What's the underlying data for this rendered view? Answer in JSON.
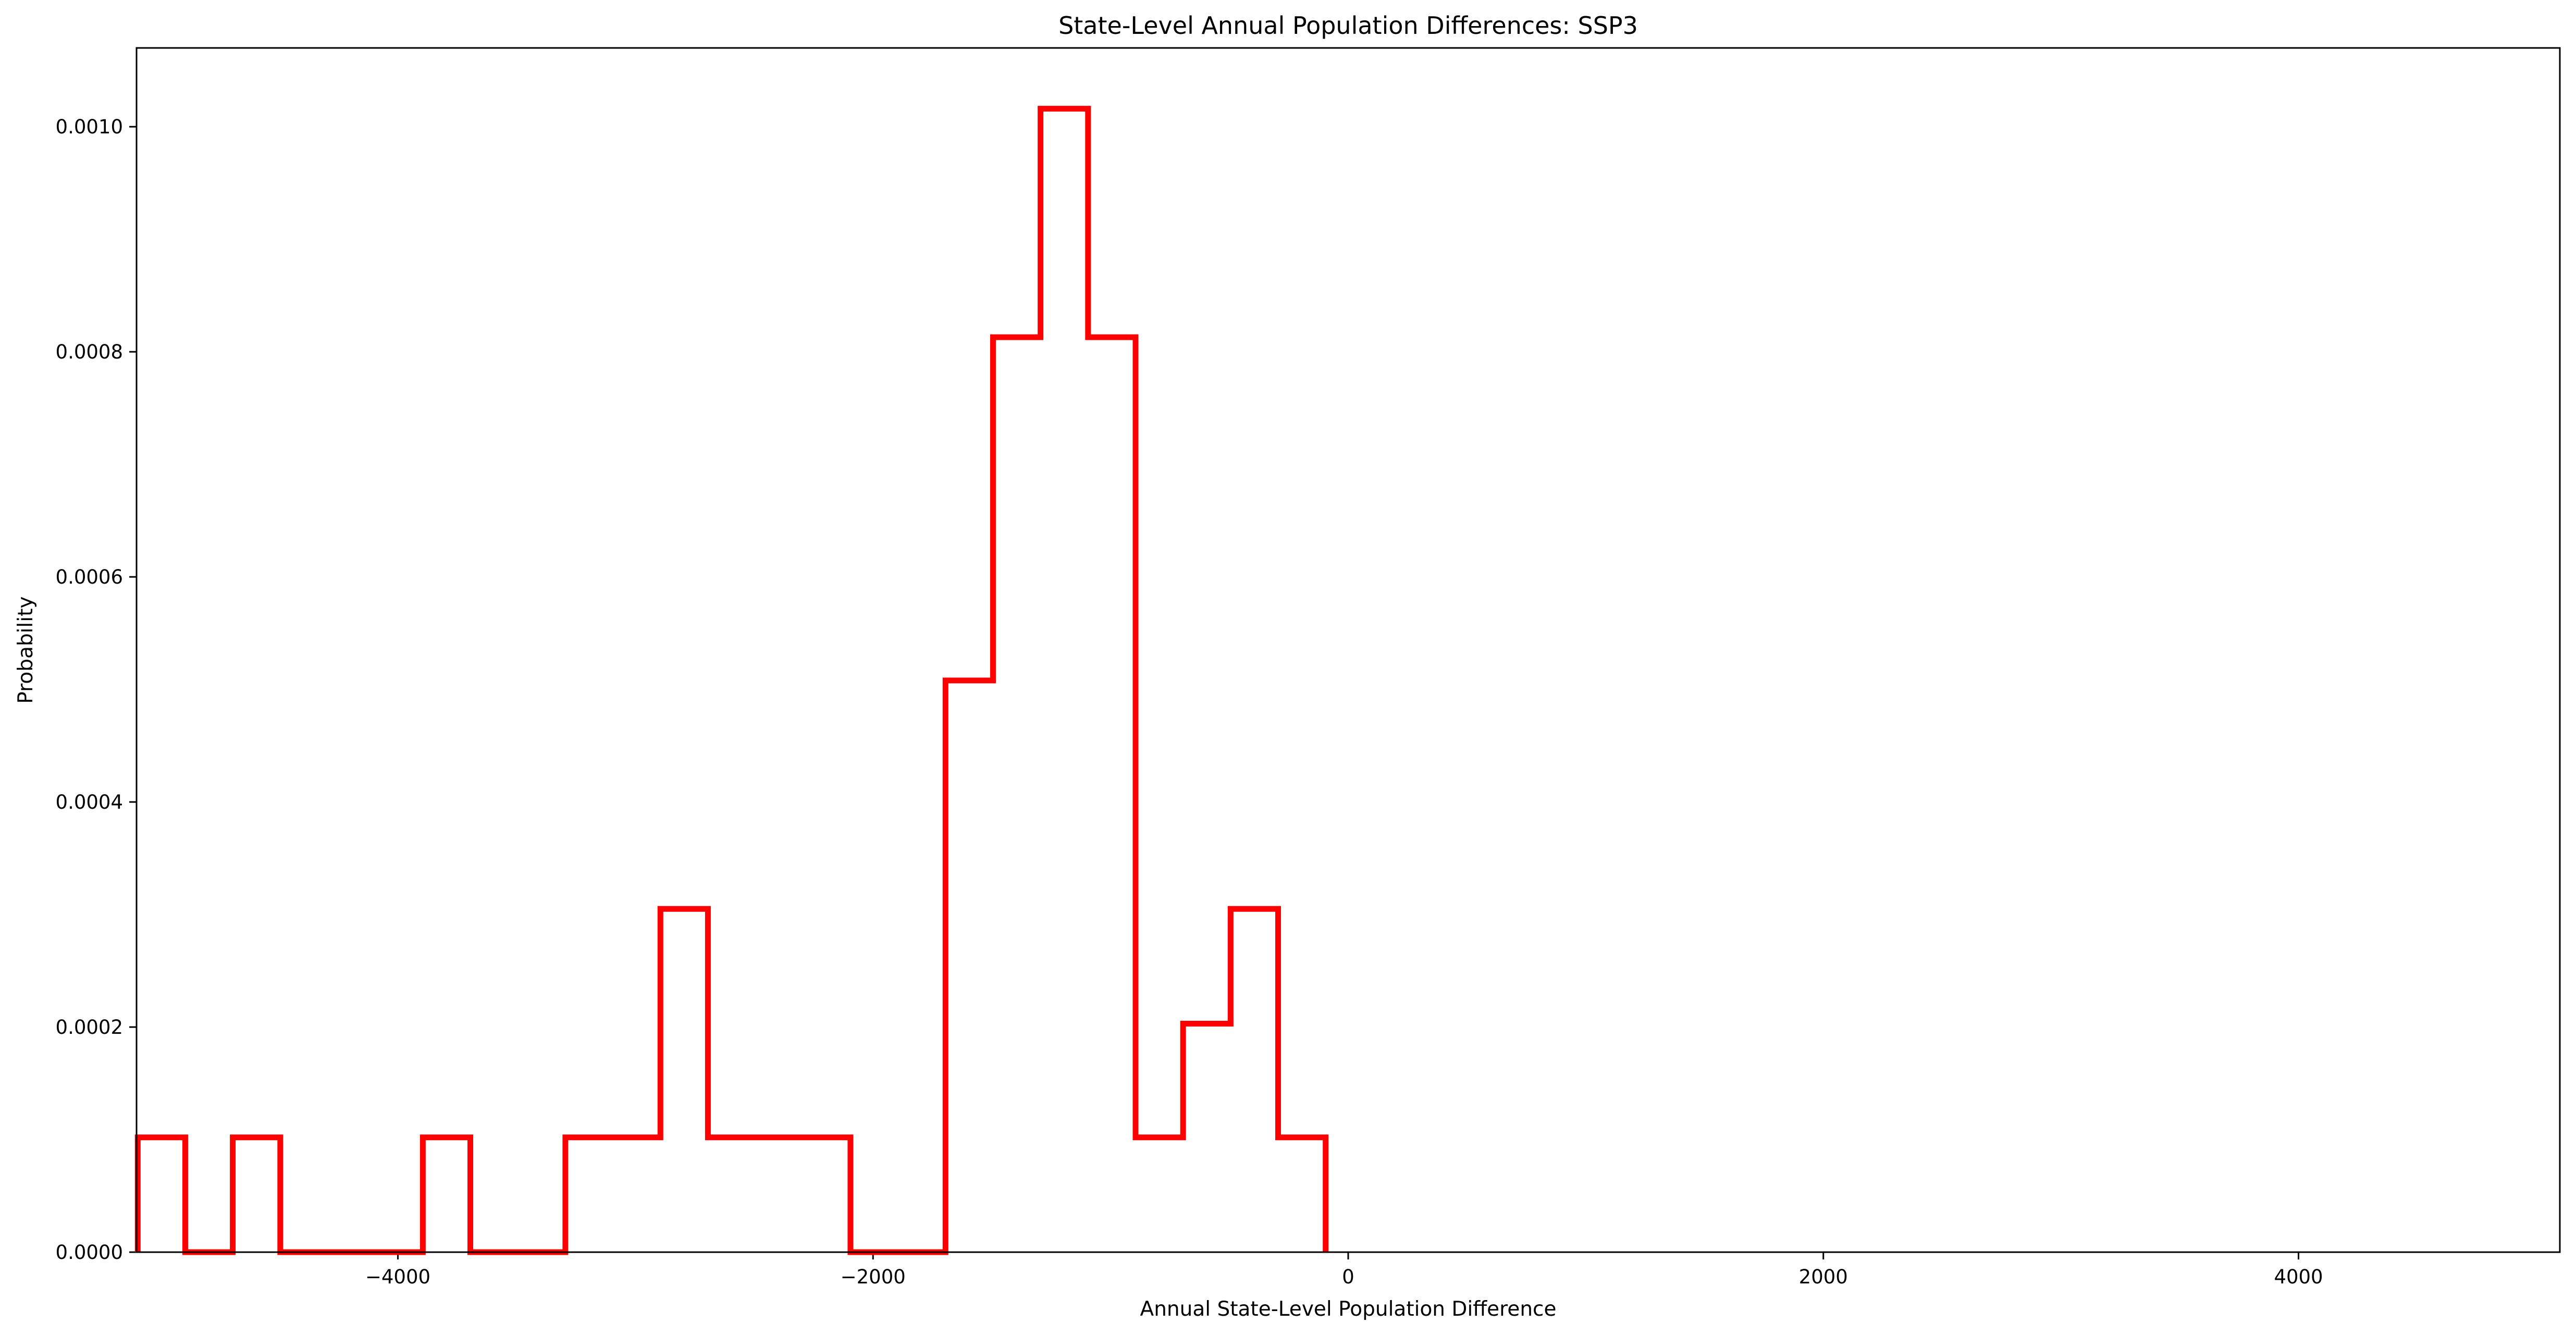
{
  "chart_data": {
    "type": "histogram-step",
    "title": "State-Level Annual Population Differences: SSP3",
    "xlabel": "Annual State-Level Population Difference",
    "ylabel": "Probability",
    "xlim": [
      -5100,
      5100
    ],
    "ylim": [
      0,
      0.00107
    ],
    "xticks": [
      {
        "value": -4000,
        "label": "−4000"
      },
      {
        "value": -2000,
        "label": "−2000"
      },
      {
        "value": 0,
        "label": "0"
      },
      {
        "value": 2000,
        "label": "2000"
      },
      {
        "value": 4000,
        "label": "4000"
      }
    ],
    "yticks": [
      {
        "value": 0.0,
        "label": "0.0000"
      },
      {
        "value": 0.0002,
        "label": "0.0002"
      },
      {
        "value": 0.0004,
        "label": "0.0004"
      },
      {
        "value": 0.0006,
        "label": "0.0006"
      },
      {
        "value": 0.0008,
        "label": "0.0008"
      },
      {
        "value": 0.001,
        "label": "0.0010"
      }
    ],
    "line_color": "#ff0000",
    "grid": false,
    "bin_edges": [
      -5095,
      -4895,
      -4695,
      -4495,
      -4295,
      -4095,
      -3895,
      -3695,
      -3495,
      -3295,
      -3095,
      -2895,
      -2695,
      -2495,
      -2295,
      -2095,
      -1895,
      -1695,
      -1495,
      -1295,
      -1095,
      -895,
      -695,
      -495,
      -295,
      -95
    ],
    "values": [
      0.000102,
      0.0,
      0.000102,
      0.0,
      0.0,
      0.0,
      0.000102,
      0.0,
      0.0,
      0.000102,
      0.000102,
      0.000305,
      0.000102,
      0.000102,
      0.000102,
      0.0,
      0.0,
      0.000508,
      0.000813,
      0.001016,
      0.000813,
      0.000102,
      0.000203,
      0.000305,
      0.000102
    ]
  }
}
